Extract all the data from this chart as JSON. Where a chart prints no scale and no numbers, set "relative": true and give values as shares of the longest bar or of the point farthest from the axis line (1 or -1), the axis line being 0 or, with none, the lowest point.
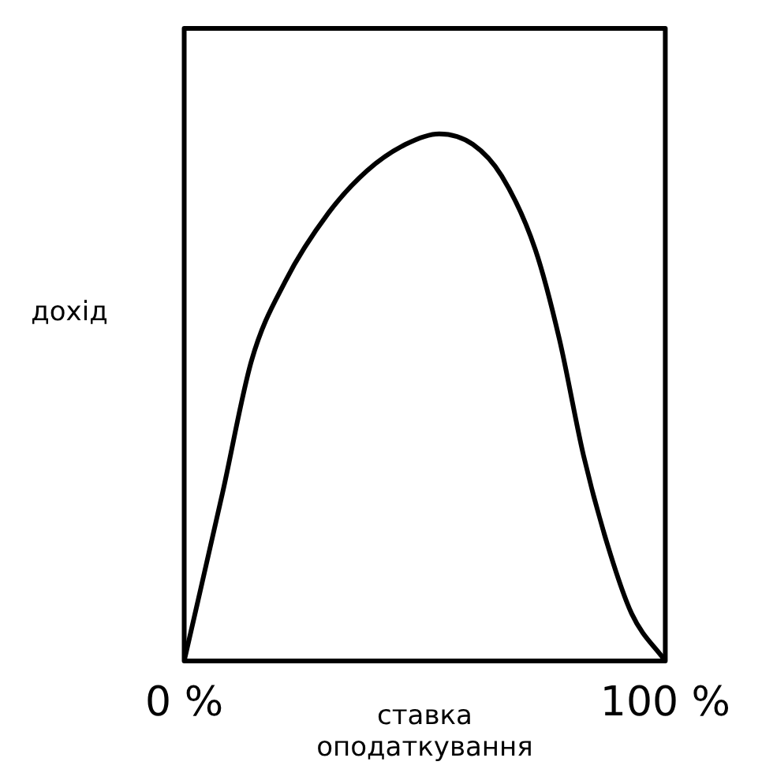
{
  "chart_data": {
    "type": "line",
    "relative": true,
    "xlabel": "ставка оподаткування",
    "ylabel": "дохід",
    "x": [
      0,
      8,
      14,
      21,
      30,
      38,
      46,
      53,
      60,
      66,
      73,
      78,
      83,
      88,
      93,
      100
    ],
    "series": [
      {
        "color": "#000000",
        "values": [
          0,
          0.32,
          0.57,
          0.72,
          0.85,
          0.93,
          0.98,
          1,
          0.98,
          0.92,
          0.78,
          0.61,
          0.39,
          0.22,
          0.09,
          0
        ]
      }
    ],
    "xlim": [
      0,
      100
    ],
    "xticks": [
      {
        "value": 0,
        "label": "0 %"
      },
      {
        "value": 100,
        "label": "100 %"
      }
    ],
    "legend": false,
    "marker": "none",
    "line_style": "solid"
  }
}
